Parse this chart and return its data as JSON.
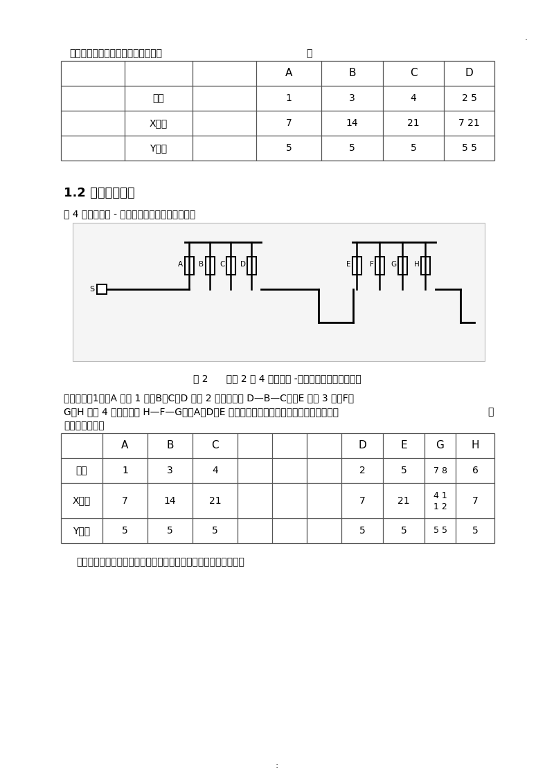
{
  "bg_color": "#ffffff",
  "text_color": "#000000",
  "section1_label": "参数设定见下表（父节点加粗表示）",
  "section1_colon": "：",
  "t1_col_headers": [
    "A",
    "B",
    "C",
    "D"
  ],
  "t1_rows": [
    [
      "编号",
      "1",
      "3",
      "4",
      "2 5"
    ],
    [
      "X时间",
      "7",
      "14",
      "21",
      "7 21"
    ],
    [
      "Y时间",
      "5",
      "5",
      "5",
      "5 5"
    ]
  ],
  "sec2_title": "1.2 典型整定示例",
  "sec2_intro": "以 4 间隔的电压 - 时间型开关柜为例，如下图：",
  "fig_caption": "图 2      安装 2 套 4 间隔电压 -时间型开关柜线路示意图",
  "para1": "根据原则（1），A 为第 1 级，B、C、D 为第 2 级（顺序为 D—B—C），E 为第 3 级，F、",
  "para2": "G、H 为第 4 级（顺序为 H—F—G），A、D、E 分别为其下一级开关的父节点（加粗表示）",
  "para2_suffix": "，",
  "para3": "参数设置如下表",
  "t2_col_headers": [
    "A",
    "B",
    "C",
    "",
    "",
    "",
    "D",
    "E",
    "G",
    "H"
  ],
  "t2_rows": [
    [
      "编号",
      "1",
      "3",
      "4",
      "",
      "",
      "",
      "2",
      "5",
      "7 8",
      "6"
    ],
    [
      "X时间",
      "7",
      "14",
      "21",
      "",
      "",
      "",
      "7",
      "21",
      "4 1",
      "7"
    ],
    [
      "Y时间",
      "5",
      "5",
      "5",
      "",
      "",
      "",
      "5",
      "5",
      "5 5",
      "5"
    ]
  ],
  "t2_x_extra": "1 2",
  "footer": "如果线路有多台电压时间型开关柜，均可根据上述原则进行设置。",
  "dot_top": ".",
  "colon_bottom": ":"
}
